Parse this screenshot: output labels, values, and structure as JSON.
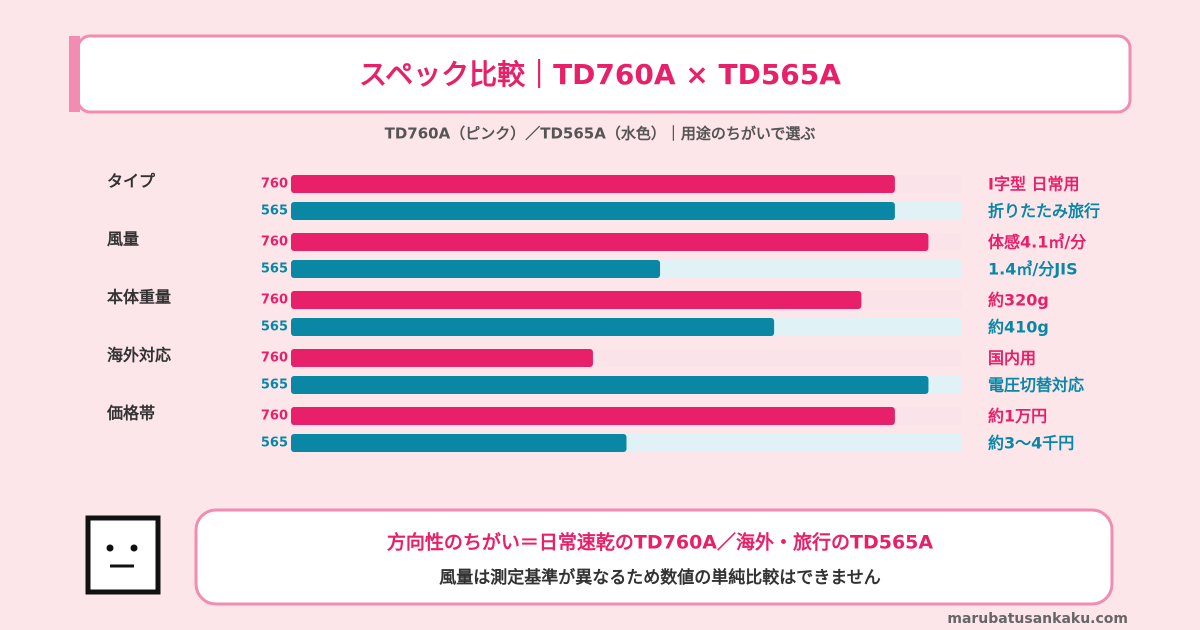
{
  "chart_data": {
    "type": "bar",
    "title": "スペック比較｜TD760A × TD565A",
    "subtitle": "TD760A（ピンク）／TD565A（水色）｜用途のちがいで選ぶ",
    "categories": [
      "タイプ",
      "風量",
      "本体重量",
      "海外対応",
      "価格帯"
    ],
    "xlim": [
      0,
      100
    ],
    "series": [
      {
        "name": "760",
        "color": "#e8206a",
        "track_color": "#fbe3ea",
        "values": [
          90,
          95,
          85,
          45,
          90
        ],
        "notes": [
          "I字型 日常用",
          "体感4.1㎥/分",
          "約320g",
          "国内用",
          "約1万円"
        ]
      },
      {
        "name": "565",
        "color": "#0b87a6",
        "track_color": "#e0f2f6",
        "values": [
          90,
          55,
          72,
          95,
          50
        ],
        "notes": [
          "折りたたみ旅行",
          "1.4㎥/分JIS",
          "約410g",
          "電圧切替対応",
          "約3〜4千円"
        ]
      }
    ]
  },
  "callout": {
    "headline": "方向性のちがい＝日常速乾のTD760A／海外・旅行のTD565A",
    "body": "風量は測定基準が異なるため数値の単純比較はできません"
  },
  "site": "marubatusankaku.com"
}
